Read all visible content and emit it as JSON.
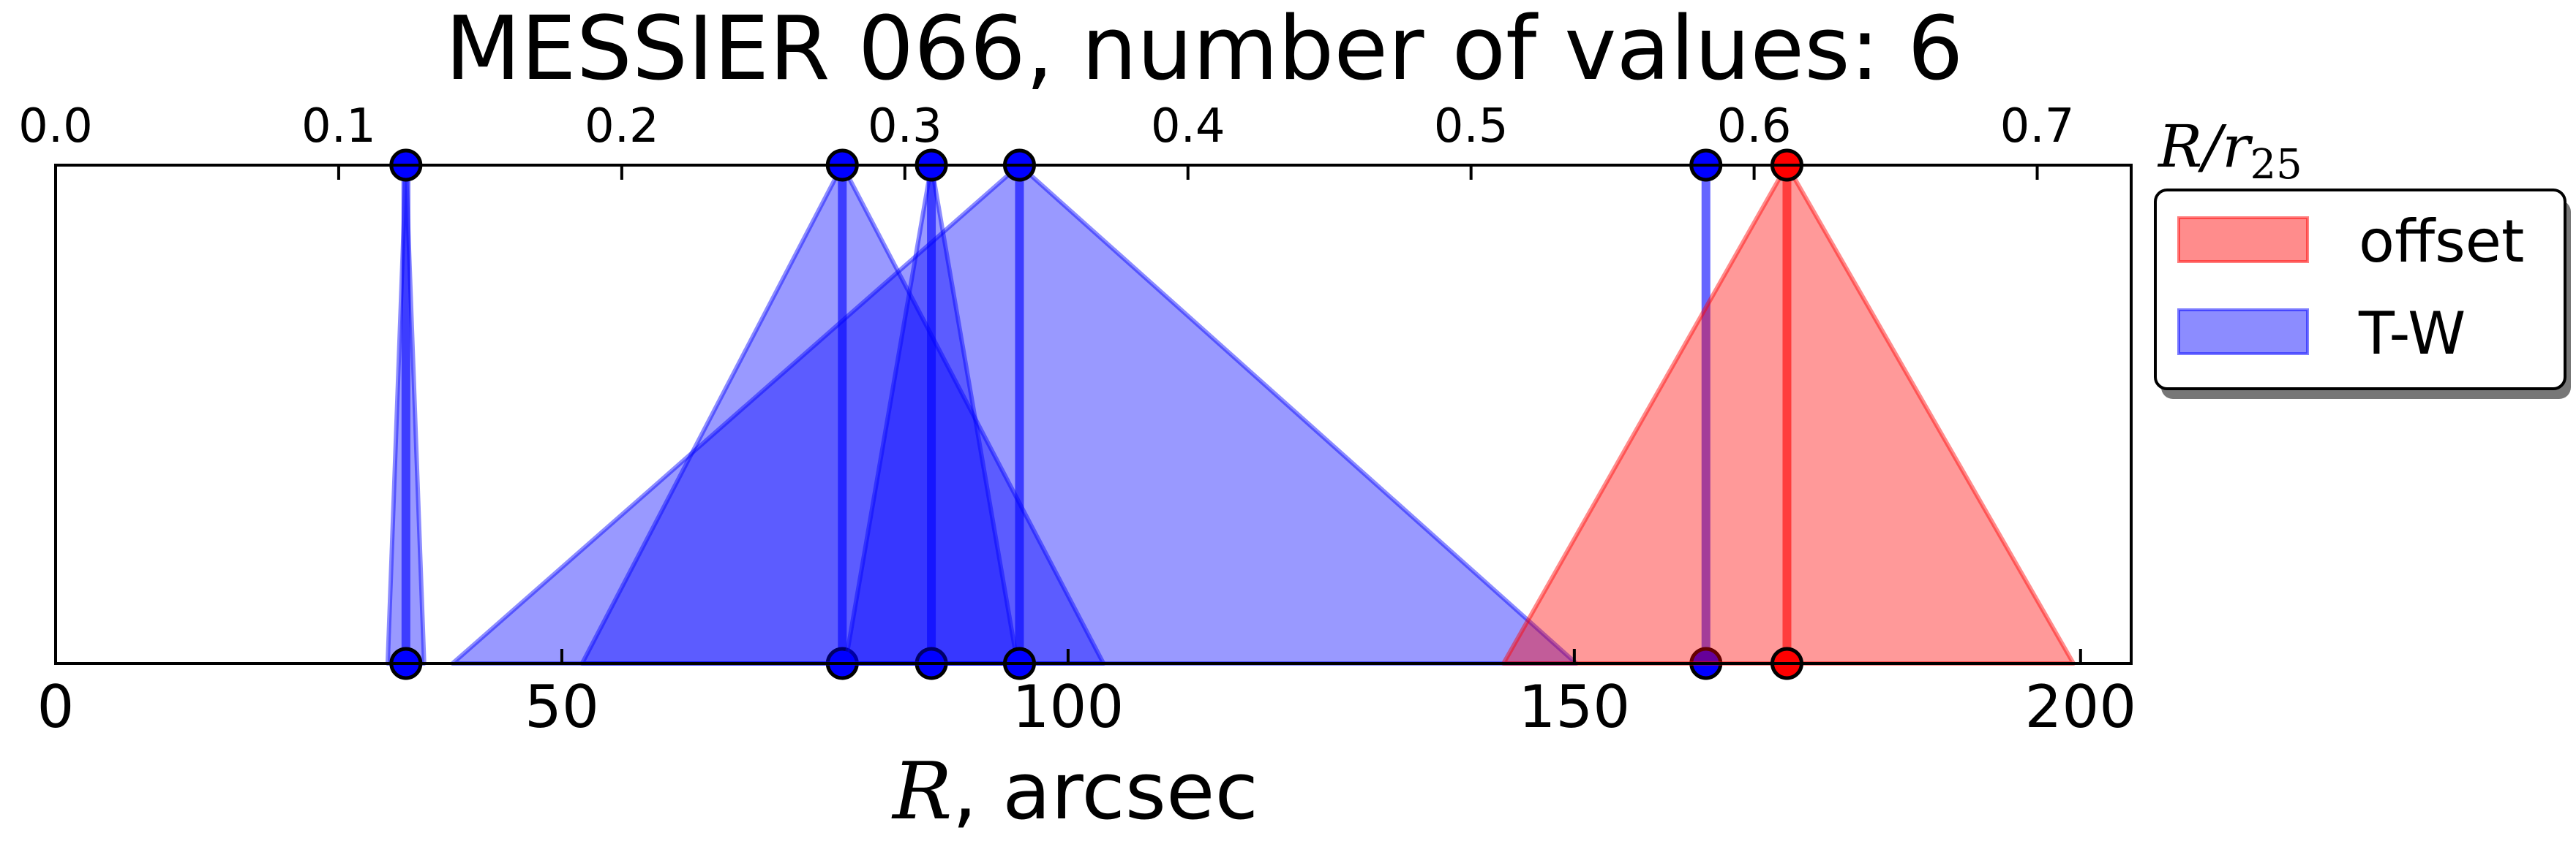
{
  "chart_data": {
    "type": "area",
    "title": "MESSIER 066, number of values: 6",
    "xlabel_var": "R",
    "xlabel_unit": ", arcsec",
    "top_xlabel_var": "R/r",
    "top_xlabel_sub": "25",
    "xlim": [
      0,
      205
    ],
    "x_ticks": [
      "0",
      "50",
      "100",
      "150",
      "200"
    ],
    "x_tick_values": [
      0,
      50,
      100,
      150,
      200
    ],
    "top_xlim": [
      0.0,
      0.7332
    ],
    "top_ticks": [
      "0.0",
      "0.1",
      "0.2",
      "0.3",
      "0.4",
      "0.5",
      "0.6",
      "0.7"
    ],
    "top_tick_values": [
      0.0,
      0.1,
      0.2,
      0.3,
      0.4,
      0.5,
      0.6,
      0.7
    ],
    "legend": [
      {
        "name": "offset",
        "color": "#ff0000"
      },
      {
        "name": "T-W",
        "color": "#0000ff"
      }
    ],
    "series": [
      {
        "name": "T-W",
        "color": "#0000ff",
        "center": 34.6,
        "low": 32.8,
        "high": 36.4
      },
      {
        "name": "T-W",
        "color": "#0000ff",
        "center": 77.7,
        "low": 52.0,
        "high": 103.5
      },
      {
        "name": "T-W",
        "color": "#0000ff",
        "center": 86.5,
        "low": 78.0,
        "high": 95.0
      },
      {
        "name": "T-W",
        "color": "#0000ff",
        "center": 95.2,
        "low": 39.2,
        "high": 150.2
      },
      {
        "name": "T-W",
        "color": "#0000ff",
        "center": 163.0,
        "low": 163.0,
        "high": 163.0
      },
      {
        "name": "offset",
        "color": "#ff0000",
        "center": 171.0,
        "low": 143.0,
        "high": 199.3
      }
    ]
  }
}
